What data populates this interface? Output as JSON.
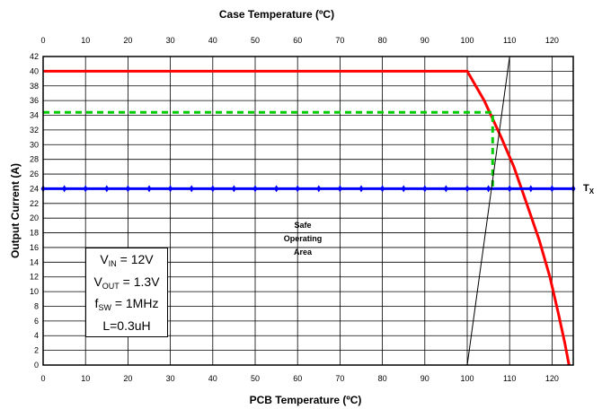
{
  "chart_data": {
    "type": "line",
    "title": "Case Temperature (ºC)",
    "xlabel": "PCB Temperature (ºC)",
    "ylabel": "Output Current (A)",
    "xlim": [
      0,
      125
    ],
    "ylim": [
      0,
      42
    ],
    "x_ticks": [
      0,
      10,
      20,
      30,
      40,
      50,
      60,
      70,
      80,
      90,
      100,
      110,
      120
    ],
    "top_x_ticks": [
      0,
      10,
      20,
      30,
      40,
      50,
      60,
      70,
      80,
      90,
      100,
      110,
      120
    ],
    "y_ticks": [
      0,
      2,
      4,
      6,
      8,
      10,
      12,
      14,
      16,
      18,
      20,
      22,
      24,
      26,
      28,
      30,
      32,
      34,
      36,
      38,
      40,
      42
    ],
    "grid": true,
    "series": [
      {
        "color": "#ff0000",
        "points": [
          [
            0,
            40
          ],
          [
            100,
            40
          ],
          [
            104,
            36
          ],
          [
            108,
            31
          ],
          [
            111,
            27
          ],
          [
            114,
            22
          ],
          [
            117,
            17
          ],
          [
            119.5,
            12
          ],
          [
            121.5,
            7
          ],
          [
            123,
            3
          ],
          [
            124,
            0
          ]
        ]
      },
      {
        "color": "#0000ff",
        "marker": "diamond",
        "points": [
          [
            0,
            24
          ],
          [
            5,
            24
          ],
          [
            10,
            24
          ],
          [
            15,
            24
          ],
          [
            20,
            24
          ],
          [
            25,
            24
          ],
          [
            30,
            24
          ],
          [
            35,
            24
          ],
          [
            40,
            24
          ],
          [
            45,
            24
          ],
          [
            50,
            24
          ],
          [
            55,
            24
          ],
          [
            60,
            24
          ],
          [
            65,
            24
          ],
          [
            70,
            24
          ],
          [
            75,
            24
          ],
          [
            80,
            24
          ],
          [
            85,
            24
          ],
          [
            90,
            24
          ],
          [
            95,
            24
          ],
          [
            100,
            24
          ],
          [
            105,
            24
          ],
          [
            110,
            24
          ],
          [
            115,
            24
          ],
          [
            120,
            24
          ],
          [
            125,
            24
          ]
        ]
      },
      {
        "color": "#00cc00",
        "dashed": true,
        "points": [
          [
            0,
            34.4
          ],
          [
            106,
            34.4
          ],
          [
            106,
            24
          ]
        ]
      },
      {
        "color": "#000000",
        "points": [
          [
            100,
            0
          ],
          [
            110,
            42
          ]
        ]
      }
    ]
  },
  "annotations": {
    "conditions": {
      "vin_main": "V",
      "vin_sub": "IN",
      "vin_val": " = 12V",
      "vout_main": "V",
      "vout_sub": "OUT",
      "vout_val": " = 1.3V",
      "fsw_main": "f",
      "fsw_sub": "SW",
      "fsw_val": " = 1MHz",
      "inductor": "L=0.3uH"
    },
    "soa_line1": "Safe",
    "soa_line2": "Operating",
    "soa_line3": "Area",
    "tx_main": "T",
    "tx_sub": "X"
  }
}
